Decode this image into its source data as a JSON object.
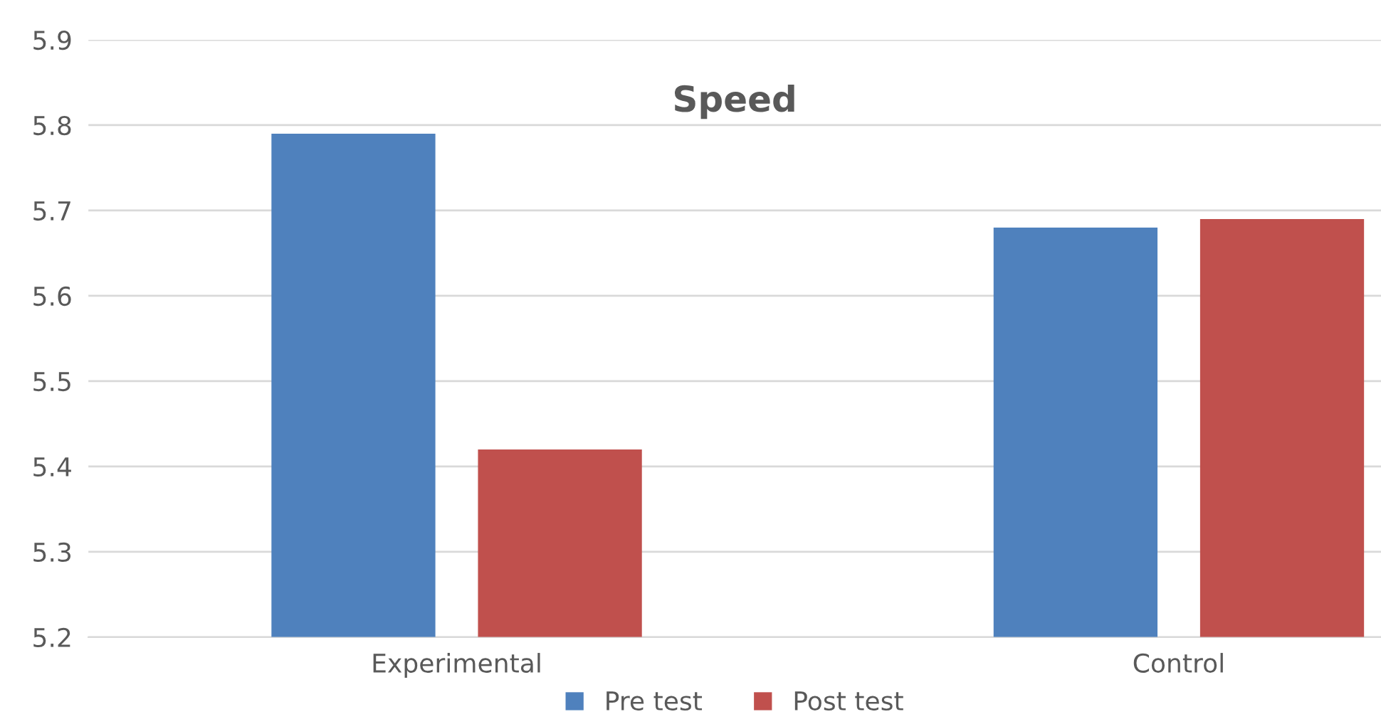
{
  "chart_data": {
    "type": "bar",
    "title": "Speed",
    "categories": [
      "Experimental",
      "Control"
    ],
    "series": [
      {
        "name": "Pre test",
        "color": "#4f81bd",
        "values": [
          5.79,
          5.68
        ]
      },
      {
        "name": "Post test",
        "color": "#c0504d",
        "values": [
          5.42,
          5.69
        ]
      }
    ],
    "ylim": [
      5.2,
      5.9
    ],
    "yticks": [
      5.2,
      5.3,
      5.4,
      5.5,
      5.6,
      5.7,
      5.8,
      5.9
    ],
    "grid": "y",
    "legend": "bottom"
  }
}
